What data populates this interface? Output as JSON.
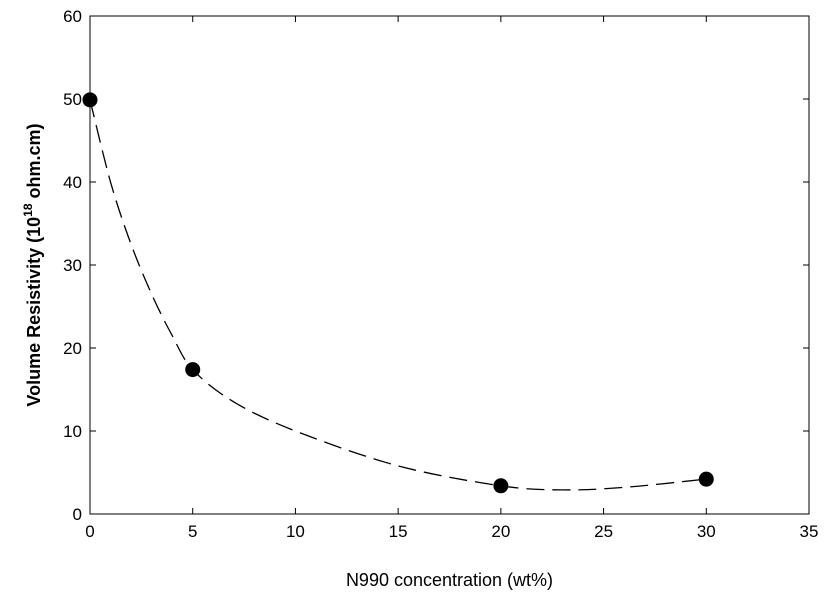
{
  "chart_data": {
    "type": "scatter",
    "title": "",
    "xlabel": "N990 concentration (wt%)",
    "ylabel": {
      "prefix": "Volume Resistivity (10",
      "superscript": "18",
      "suffix": " ohm.cm)"
    },
    "xlim": [
      0,
      35
    ],
    "ylim": [
      0,
      60
    ],
    "xticks": [
      "0",
      "5",
      "10",
      "15",
      "20",
      "25",
      "30",
      "35"
    ],
    "yticks": [
      "0",
      "10",
      "20",
      "30",
      "40",
      "50",
      "60"
    ],
    "grid": false,
    "legend": "none",
    "series": [
      {
        "marker": "filled-circle",
        "color": "#000000",
        "points": [
          {
            "x": 0,
            "y": 49.9
          },
          {
            "x": 5,
            "y": 17.4
          },
          {
            "x": 20,
            "y": 3.4
          },
          {
            "x": 30,
            "y": 4.2
          }
        ]
      }
    ],
    "fit_curve": {
      "style": "dashed",
      "color": "#000000",
      "points": [
        {
          "x": 0,
          "y": 49.9
        },
        {
          "x": 1,
          "y": 40.0
        },
        {
          "x": 2,
          "y": 32.5
        },
        {
          "x": 3,
          "y": 26.5
        },
        {
          "x": 4,
          "y": 21.5
        },
        {
          "x": 5,
          "y": 17.4
        },
        {
          "x": 7,
          "y": 13.5
        },
        {
          "x": 10,
          "y": 10.0
        },
        {
          "x": 15,
          "y": 5.8
        },
        {
          "x": 20,
          "y": 3.4
        },
        {
          "x": 23,
          "y": 2.9
        },
        {
          "x": 26,
          "y": 3.2
        },
        {
          "x": 30,
          "y": 4.2
        }
      ]
    }
  }
}
